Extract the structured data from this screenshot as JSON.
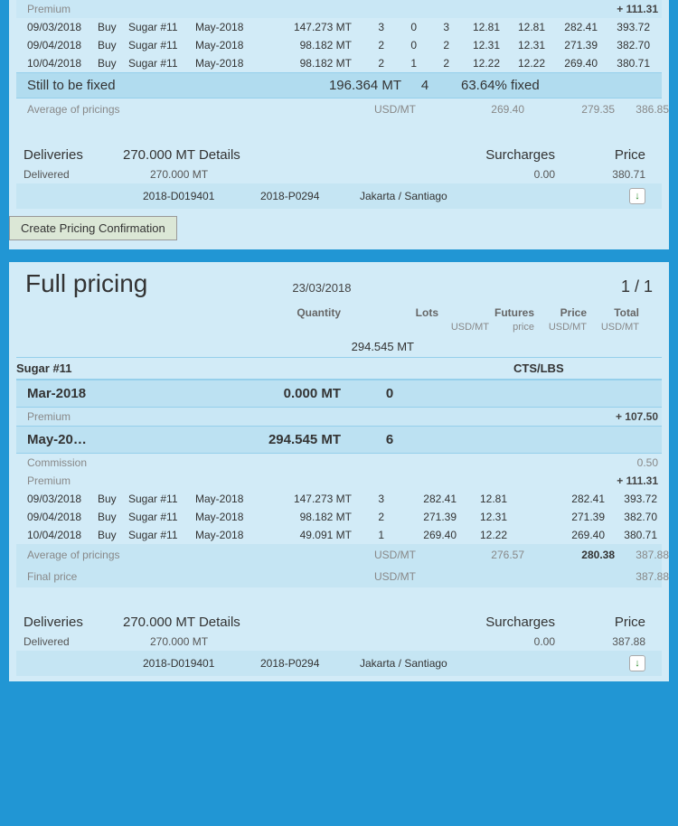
{
  "top": {
    "premium_label": "Premium",
    "premium_value": "+ 111.31",
    "rows": [
      {
        "date": "09/03/2018",
        "side": "Buy",
        "product": "Sugar #11",
        "month": "May-2018",
        "qty": "147.273 MT",
        "a": "3",
        "b": "0",
        "c": "3",
        "p1": "12.81",
        "p2": "12.81",
        "p3": "282.41",
        "p4": "393.72"
      },
      {
        "date": "09/04/2018",
        "side": "Buy",
        "product": "Sugar #11",
        "month": "May-2018",
        "qty": "98.182 MT",
        "a": "2",
        "b": "0",
        "c": "2",
        "p1": "12.31",
        "p2": "12.31",
        "p3": "271.39",
        "p4": "382.70"
      },
      {
        "date": "10/04/2018",
        "side": "Buy",
        "product": "Sugar #11",
        "month": "May-2018",
        "qty": "98.182 MT",
        "a": "2",
        "b": "1",
        "c": "2",
        "p1": "12.22",
        "p2": "12.22",
        "p3": "269.40",
        "p4": "380.71"
      }
    ],
    "still_label": "Still to be fixed",
    "still_qty": "196.364 MT",
    "still_lots": "4",
    "still_pct": "63.64% fixed",
    "avg_label": "Average of pricings",
    "avg_unit": "USD/MT",
    "avg_v1": "269.40",
    "avg_v2": "279.35",
    "avg_v3": "386.85",
    "deliveries_label": "Deliveries",
    "deliveries_qty": "270.000 MT Details",
    "surcharges_label": "Surcharges",
    "price_label": "Price",
    "delivered_label": "Delivered",
    "delivered_qty": "270.000 MT",
    "delivered_surcharge": "0.00",
    "delivered_price": "380.71",
    "ref1": "2018-D019401",
    "ref2": "2018-P0294",
    "route": "Jakarta / Santiago",
    "button_label": "Create Pricing Confirmation"
  },
  "full": {
    "title": "Full pricing",
    "date": "23/03/2018",
    "page": "1 / 1",
    "h_qty": "Quantity",
    "h_lots": "Lots",
    "h_futures": "Futures",
    "h_price": "Price",
    "h_total": "Total",
    "h_usdmt1": "USD/MT",
    "h_price2": "price",
    "h_usdmt2": "USD/MT",
    "h_usdmt3": "USD/MT",
    "total_qty": "294.545 MT",
    "product": "Sugar #11",
    "product_unit": "CTS/LBS",
    "mar_label": "Mar-2018",
    "mar_qty": "0.000 MT",
    "mar_lots": "0",
    "mar_premium_label": "Premium",
    "mar_premium_value": "+ 107.50",
    "may_label": "May-20…",
    "may_qty": "294.545 MT",
    "may_lots": "6",
    "commission_label": "Commission",
    "commission_value": "0.50",
    "premium_label": "Premium",
    "premium_value": "+ 111.31",
    "rows": [
      {
        "date": "09/03/2018",
        "side": "Buy",
        "product": "Sugar #11",
        "month": "May-2018",
        "qty": "147.273 MT",
        "a": "3",
        "fut": "282.41",
        "p2": "12.81",
        "p3": "282.41",
        "p4": "393.72"
      },
      {
        "date": "09/04/2018",
        "side": "Buy",
        "product": "Sugar #11",
        "month": "May-2018",
        "qty": "98.182 MT",
        "a": "2",
        "fut": "271.39",
        "p2": "12.31",
        "p3": "271.39",
        "p4": "382.70"
      },
      {
        "date": "10/04/2018",
        "side": "Buy",
        "product": "Sugar #11",
        "month": "May-2018",
        "qty": "49.091 MT",
        "a": "1",
        "fut": "269.40",
        "p2": "12.22",
        "p3": "269.40",
        "p4": "380.71"
      }
    ],
    "avg_label": "Average of pricings",
    "avg_unit": "USD/MT",
    "avg_v1": "276.57",
    "avg_v2": "280.38",
    "avg_v3": "387.88",
    "final_label": "Final price",
    "final_unit": "USD/MT",
    "final_v3": "387.88",
    "deliveries_label": "Deliveries",
    "deliveries_qty": "270.000 MT Details",
    "surcharges_label": "Surcharges",
    "price_label": "Price",
    "delivered_label": "Delivered",
    "delivered_qty": "270.000 MT",
    "delivered_surcharge": "0.00",
    "delivered_price": "387.88",
    "ref1": "2018-D019401",
    "ref2": "2018-P0294",
    "route": "Jakarta / Santiago"
  }
}
